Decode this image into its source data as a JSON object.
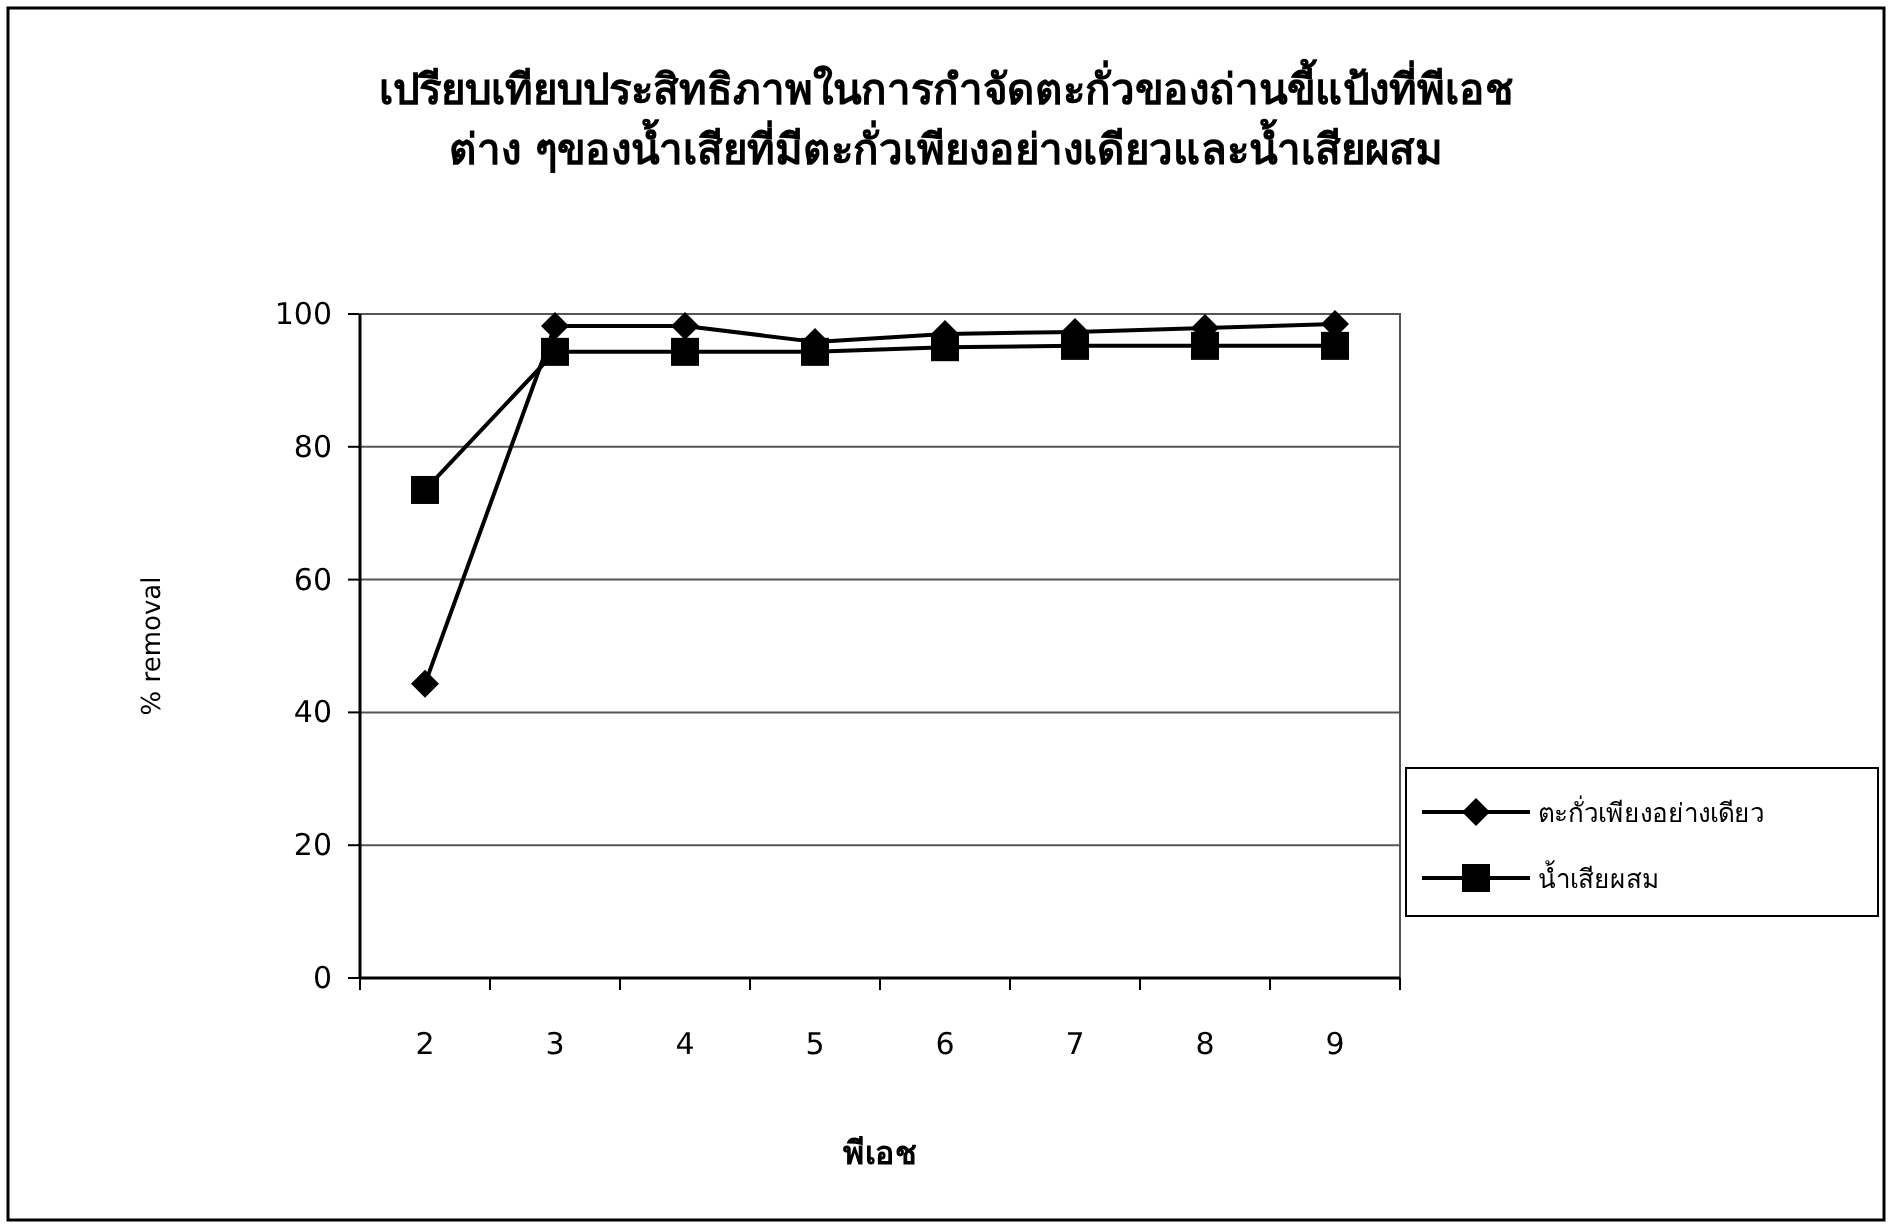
{
  "chart_data": {
    "type": "line",
    "title": "เปรียบเทียบประสิทธิภาพในการกำจัดตะกั่วของถ่านขี้แป้งที่พีเอช\nต่าง ๆของน้ำเสียที่มีตะกั่วเพียงอย่างเดียวและน้ำเสียผสม",
    "xlabel": "พีเอช",
    "ylabel": "% removal",
    "categories": [
      "2",
      "3",
      "4",
      "5",
      "6",
      "7",
      "8",
      "9"
    ],
    "series": [
      {
        "name": "ตะกั่วเพียงอย่างเดียว",
        "color": "#000000",
        "marker": "diamond",
        "values": [
          44.3,
          98.2,
          98.2,
          95.8,
          97,
          97.3,
          97.9,
          98.5
        ]
      },
      {
        "name": "น้ำเสียผสม",
        "color": "#000000",
        "marker": "square",
        "values": [
          73.5,
          94.3,
          94.3,
          94.3,
          95,
          95.2,
          95.2,
          95.2
        ]
      }
    ],
    "ylim": [
      0,
      100
    ],
    "yticks": [
      0,
      20,
      40,
      60,
      80,
      100
    ],
    "grid": "y",
    "legend": "right",
    "line_style": "solid"
  }
}
